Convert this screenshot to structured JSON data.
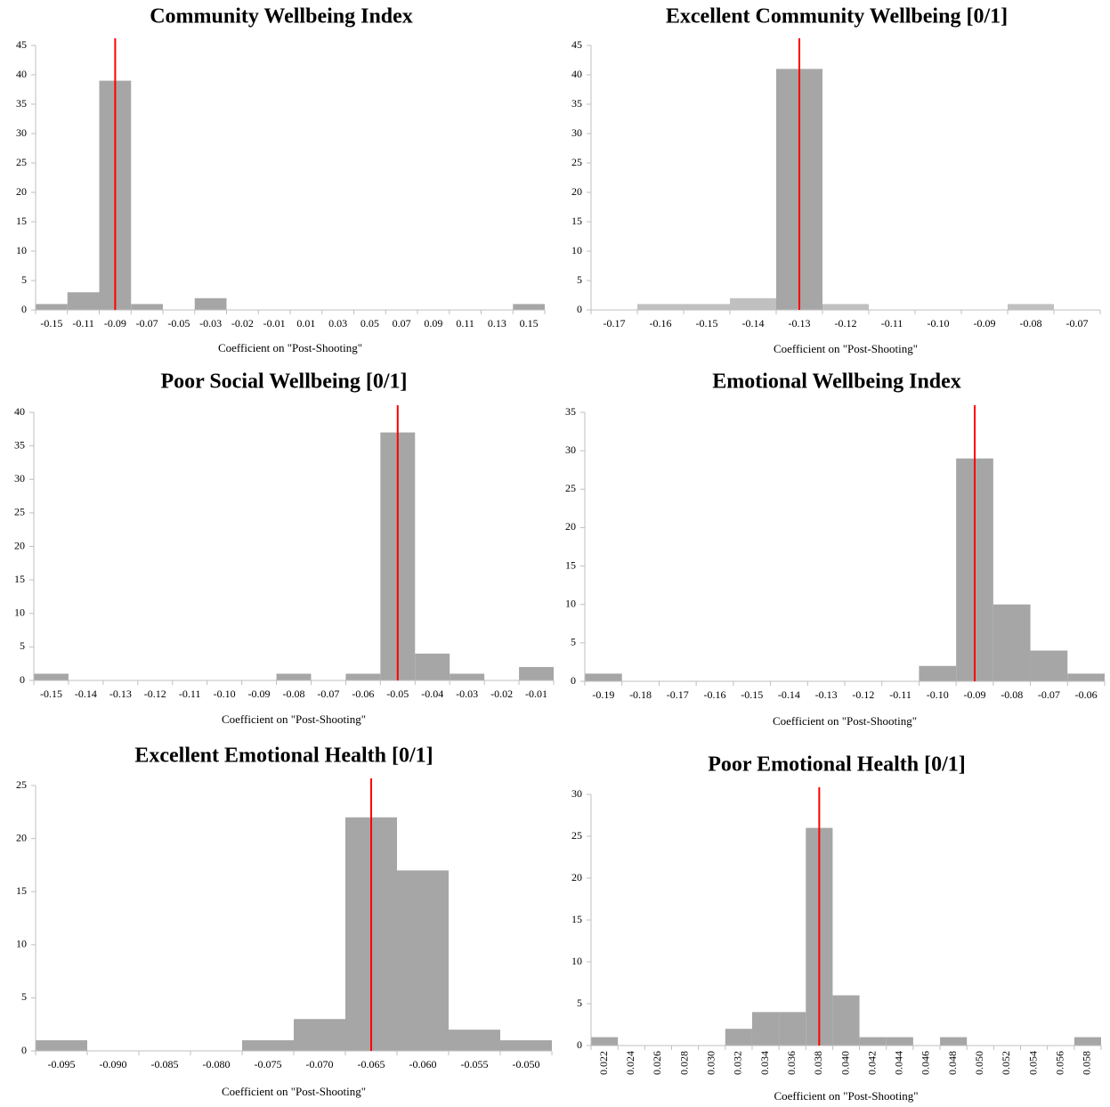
{
  "chart_data": [
    {
      "type": "bar",
      "title": "Community Wellbeing Index",
      "x_label": "Coefficient on \"Post-Shooting\"",
      "categories": [
        "-0.15",
        "-0.11",
        "-0.09",
        "-0.07",
        "-0.05",
        "-0.03",
        "-0.02",
        "-0.01",
        "0.01",
        "0.03",
        "0.05",
        "0.07",
        "0.09",
        "0.11",
        "0.13",
        "0.15"
      ],
      "values": [
        1,
        3,
        39,
        1,
        0,
        2,
        0,
        0,
        0,
        0,
        0,
        0,
        0,
        0,
        0,
        1
      ],
      "color": "#a6a6a6",
      "ylim": [
        0,
        45
      ],
      "yticks": [
        0,
        5,
        10,
        15,
        20,
        25,
        30,
        35,
        40,
        45
      ],
      "reference_line": {
        "at": 2.5,
        "color": "#ff0000"
      }
    },
    {
      "type": "bar",
      "title": "Excellent Community Wellbeing [0/1]",
      "x_label": "Coefficient on \"Post-Shooting\"",
      "categories": [
        "-0.17",
        "-0.16",
        "-0.15",
        "-0.14",
        "-0.13",
        "-0.12",
        "-0.11",
        "-0.10",
        "-0.09",
        "-0.08",
        "-0.07"
      ],
      "values": [
        0,
        1,
        1,
        2,
        41,
        1,
        0,
        0,
        0,
        1,
        0
      ],
      "colors": [
        "#c0c0c0",
        "#c0c0c0",
        "#c0c0c0",
        "#c0c0c0",
        "#a6a6a6",
        "#c0c0c0",
        "#c0c0c0",
        "#c0c0c0",
        "#c0c0c0",
        "#c0c0c0",
        "#c0c0c0"
      ],
      "ylim": [
        0,
        45
      ],
      "yticks": [
        0,
        5,
        10,
        15,
        20,
        25,
        30,
        35,
        40,
        45
      ],
      "reference_line": {
        "at": 4.5,
        "color": "#ff0000"
      }
    },
    {
      "type": "bar",
      "title": "Poor Social Wellbeing [0/1]",
      "x_label": "Coefficient on \"Post-Shooting\"",
      "categories": [
        "-0.15",
        "-0.14",
        "-0.13",
        "-0.12",
        "-0.11",
        "-0.10",
        "-0.09",
        "-0.08",
        "-0.07",
        "-0.06",
        "-0.05",
        "-0.04",
        "-0.03",
        "-0.02",
        "-0.01"
      ],
      "values": [
        1,
        0,
        0,
        0,
        0,
        0,
        0,
        1,
        0,
        1,
        37,
        4,
        1,
        0,
        2
      ],
      "color": "#a6a6a6",
      "ylim": [
        0,
        40
      ],
      "yticks": [
        0,
        5,
        10,
        15,
        20,
        25,
        30,
        35,
        40
      ],
      "reference_line": {
        "at": 10.5,
        "color": "#ff0000"
      }
    },
    {
      "type": "bar",
      "title": "Emotional Wellbeing Index",
      "x_label": "Coefficient on \"Post-Shooting\"",
      "categories": [
        "-0.19",
        "-0.18",
        "-0.17",
        "-0.16",
        "-0.15",
        "-0.14",
        "-0.13",
        "-0.12",
        "-0.11",
        "-0.10",
        "-0.09",
        "-0.08",
        "-0.07",
        "-0.06"
      ],
      "values": [
        1,
        0,
        0,
        0,
        0,
        0,
        0,
        0,
        0,
        2,
        29,
        10,
        4,
        1
      ],
      "color": "#a6a6a6",
      "ylim": [
        0,
        35
      ],
      "yticks": [
        0,
        5,
        10,
        15,
        20,
        25,
        30,
        35
      ],
      "reference_line": {
        "at": 10.5,
        "color": "#ff0000"
      }
    },
    {
      "type": "bar",
      "title": "Excellent Emotional Health [0/1]",
      "x_label": "Coefficient on \"Post-Shooting\"",
      "categories": [
        "-0.095",
        "-0.090",
        "-0.085",
        "-0.080",
        "-0.075",
        "-0.070",
        "-0.065",
        "-0.060",
        "-0.055",
        "-0.050"
      ],
      "values": [
        1,
        0,
        0,
        0,
        1,
        3,
        22,
        17,
        2,
        1
      ],
      "color": "#a6a6a6",
      "ylim": [
        0,
        25
      ],
      "yticks": [
        0,
        5,
        10,
        15,
        20,
        25
      ],
      "reference_line": {
        "at": 6.5,
        "color": "#ff0000"
      }
    },
    {
      "type": "bar",
      "title": "Poor Emotional Health [0/1]",
      "x_label": "Coefficient on \"Post-Shooting\"",
      "categories": [
        "0.022",
        "0.024",
        "0.026",
        "0.028",
        "0.030",
        "0.032",
        "0.034",
        "0.036",
        "0.038",
        "0.040",
        "0.042",
        "0.044",
        "0.046",
        "0.048",
        "0.050",
        "0.052",
        "0.054",
        "0.056",
        "0.058"
      ],
      "values": [
        1,
        0,
        0,
        0,
        0,
        2,
        4,
        4,
        26,
        6,
        1,
        1,
        0,
        1,
        0,
        0,
        0,
        0,
        1
      ],
      "color": "#a6a6a6",
      "ylim": [
        0,
        30
      ],
      "yticks": [
        0,
        5,
        10,
        15,
        20,
        25,
        30
      ],
      "reference_line": {
        "at": 8.5,
        "color": "#ff0000"
      }
    }
  ]
}
